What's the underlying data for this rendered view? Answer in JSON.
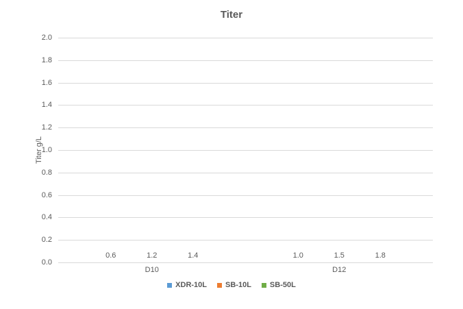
{
  "chart_data": {
    "type": "bar",
    "title": "Titer",
    "ylabel": "Titer g/L",
    "xlabel": "",
    "categories": [
      "D10",
      "D12"
    ],
    "series": [
      {
        "name": "XDR-10L",
        "color": "#5B9BD5",
        "values": [
          0.64,
          0.98
        ],
        "data_labels": [
          "0.6",
          "1.0"
        ]
      },
      {
        "name": "SB-10L",
        "color": "#ED7D31",
        "values": [
          1.2,
          1.5
        ],
        "data_labels": [
          "1.2",
          "1.5"
        ]
      },
      {
        "name": "SB-50L",
        "color": "#70AD47",
        "values": [
          1.4,
          1.8
        ],
        "data_labels": [
          "1.4",
          "1.8"
        ]
      }
    ],
    "ylim": [
      0,
      2.0
    ],
    "yticks": [
      "0.0",
      "0.2",
      "0.4",
      "0.6",
      "0.8",
      "1.0",
      "1.2",
      "1.4",
      "1.6",
      "1.8",
      "2.0"
    ],
    "grid": true,
    "gridline_color": "#D9D9D9",
    "text_color": "#595959",
    "legend_position": "bottom"
  }
}
